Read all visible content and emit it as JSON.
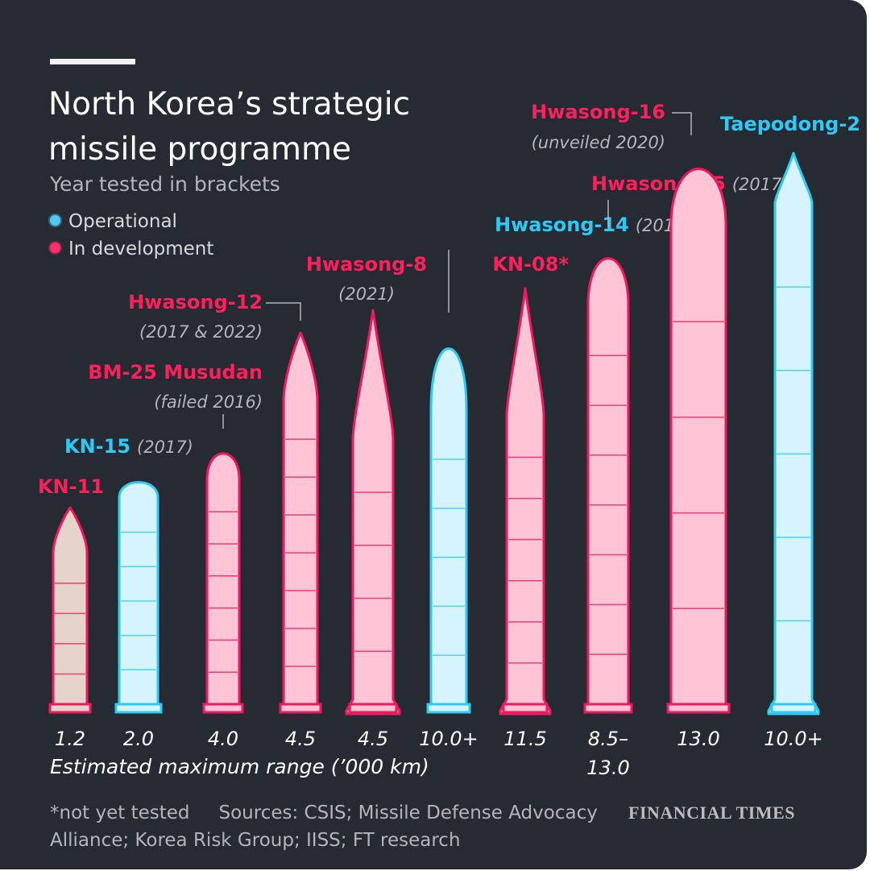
{
  "header": {
    "title": "North Korea’s strategic missile programme",
    "subtitle": "Year tested in brackets"
  },
  "legend": [
    {
      "label": "Operational",
      "color": "#4fc9ee"
    },
    {
      "label": "In development",
      "color": "#ff2f6d"
    }
  ],
  "colors": {
    "background": "#262a33",
    "operational_stroke": "#2ec9f5",
    "operational_fill": "#d6f4ff",
    "development_stroke": "#f0195e",
    "development_fill": "#ffc4d6",
    "kn11_fill": "#e6d3cc"
  },
  "chart_data": {
    "type": "bar",
    "xlabel": "Estimated maximum range (’000 km)",
    "missiles": [
      {
        "name": "KN-11",
        "year": "",
        "status": "In development",
        "range_label": "1.2"
      },
      {
        "name": "KN-15",
        "year": "(2017)",
        "status": "Operational",
        "range_label": "2.0"
      },
      {
        "name": "BM-25 Musudan",
        "year": "(failed 2016)",
        "status": "In development",
        "range_label": "4.0"
      },
      {
        "name": "Hwasong-12",
        "year": "(2017 & 2022)",
        "status": "In development",
        "range_label": "4.5"
      },
      {
        "name": "Hwasong-8",
        "year": "(2021)",
        "status": "In development",
        "range_label": "4.5"
      },
      {
        "name": "Hwasong-14",
        "year": "(2017)",
        "status": "Operational",
        "range_label": "10.0+"
      },
      {
        "name": "KN-08*",
        "year": "",
        "status": "In development",
        "range_label": "11.5"
      },
      {
        "name": "Hwasong-15",
        "year": "(2017)",
        "status": "In development",
        "range_label": "8.5–13.0"
      },
      {
        "name": "Hwasong-16",
        "year": "(unveiled 2020)",
        "status": "In development",
        "range_label": "13.0"
      },
      {
        "name": "Taepodong-2",
        "year": "",
        "status": "Operational",
        "range_label": "10.0+"
      }
    ]
  },
  "footer": {
    "note": "*not yet tested",
    "sources": "Sources: CSIS; Missile Defense Advocacy Alliance; Korea Risk Group; IISS; FT research",
    "brand": "FINANCIAL TIMES"
  }
}
